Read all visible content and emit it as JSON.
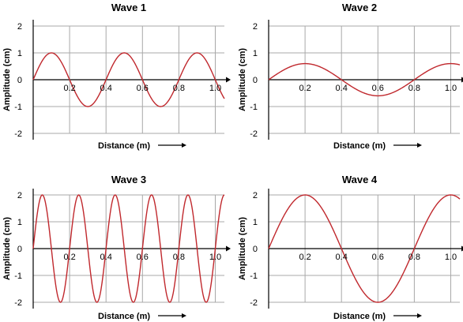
{
  "chart_data": [
    {
      "type": "line",
      "title": "Wave 1",
      "xlabel": "Distance (m)",
      "ylabel": "Amplitude (cm)",
      "xlim": [
        0,
        1.05
      ],
      "ylim": [
        -2,
        2
      ],
      "x_ticks": [
        0.2,
        0.4,
        0.6,
        0.8,
        1.0
      ],
      "x_tick_labels": [
        "0.2",
        "0.4",
        "0.6",
        "0.8",
        "1.0"
      ],
      "y_ticks": [
        2,
        1,
        0,
        -1,
        -2
      ],
      "y_tick_labels": [
        "2",
        "1",
        "0",
        "-1",
        "-2"
      ],
      "grid": true,
      "color": "#c0282d",
      "series": [
        {
          "amplitude": 1,
          "wavelength": 0.4,
          "x": [
            0,
            1.05
          ]
        }
      ]
    },
    {
      "type": "line",
      "title": "Wave 2",
      "xlabel": "Distance (m)",
      "ylabel": "Amplitude (cm)",
      "xlim": [
        0,
        1.05
      ],
      "ylim": [
        -2,
        2
      ],
      "x_ticks": [
        0.2,
        0.4,
        0.6,
        0.8,
        1.0
      ],
      "x_tick_labels": [
        "0.2",
        "0.4",
        "0.6",
        "0.8",
        "1.0"
      ],
      "y_ticks": [
        2,
        1,
        0,
        -1,
        -2
      ],
      "y_tick_labels": [
        "2",
        "1",
        "0",
        "-1",
        "-2"
      ],
      "grid": true,
      "color": "#c0282d",
      "series": [
        {
          "amplitude": 0.6,
          "wavelength": 0.8,
          "x": [
            0,
            1.05
          ]
        }
      ]
    },
    {
      "type": "line",
      "title": "Wave 3",
      "xlabel": "Distance (m)",
      "ylabel": "Amplitude (cm)",
      "xlim": [
        0,
        1.05
      ],
      "ylim": [
        -2,
        2
      ],
      "x_ticks": [
        0.2,
        0.4,
        0.6,
        0.8,
        1.0
      ],
      "x_tick_labels": [
        "0.2",
        "0.4",
        "0.6",
        "0.8",
        "1.0"
      ],
      "y_ticks": [
        2,
        1,
        0,
        -1,
        -2
      ],
      "y_tick_labels": [
        "2",
        "1",
        "0",
        "-1",
        "-2"
      ],
      "grid": true,
      "color": "#c0282d",
      "series": [
        {
          "amplitude": 2,
          "wavelength": 0.2,
          "x": [
            0,
            1.05
          ]
        }
      ]
    },
    {
      "type": "line",
      "title": "Wave 4",
      "xlabel": "Distance (m)",
      "ylabel": "Amplitude (cm)",
      "xlim": [
        0,
        1.05
      ],
      "ylim": [
        -2,
        2
      ],
      "x_ticks": [
        0.2,
        0.4,
        0.6,
        0.8,
        1.0
      ],
      "x_tick_labels": [
        "0.2",
        "0.4",
        "0.6",
        "0.8",
        "1.0"
      ],
      "y_ticks": [
        2,
        1,
        0,
        -1,
        -2
      ],
      "y_tick_labels": [
        "2",
        "1",
        "0",
        "-1",
        "-2"
      ],
      "grid": true,
      "color": "#c0282d",
      "series": [
        {
          "amplitude": 2,
          "wavelength": 0.8,
          "x": [
            0,
            1.05
          ]
        }
      ]
    }
  ]
}
